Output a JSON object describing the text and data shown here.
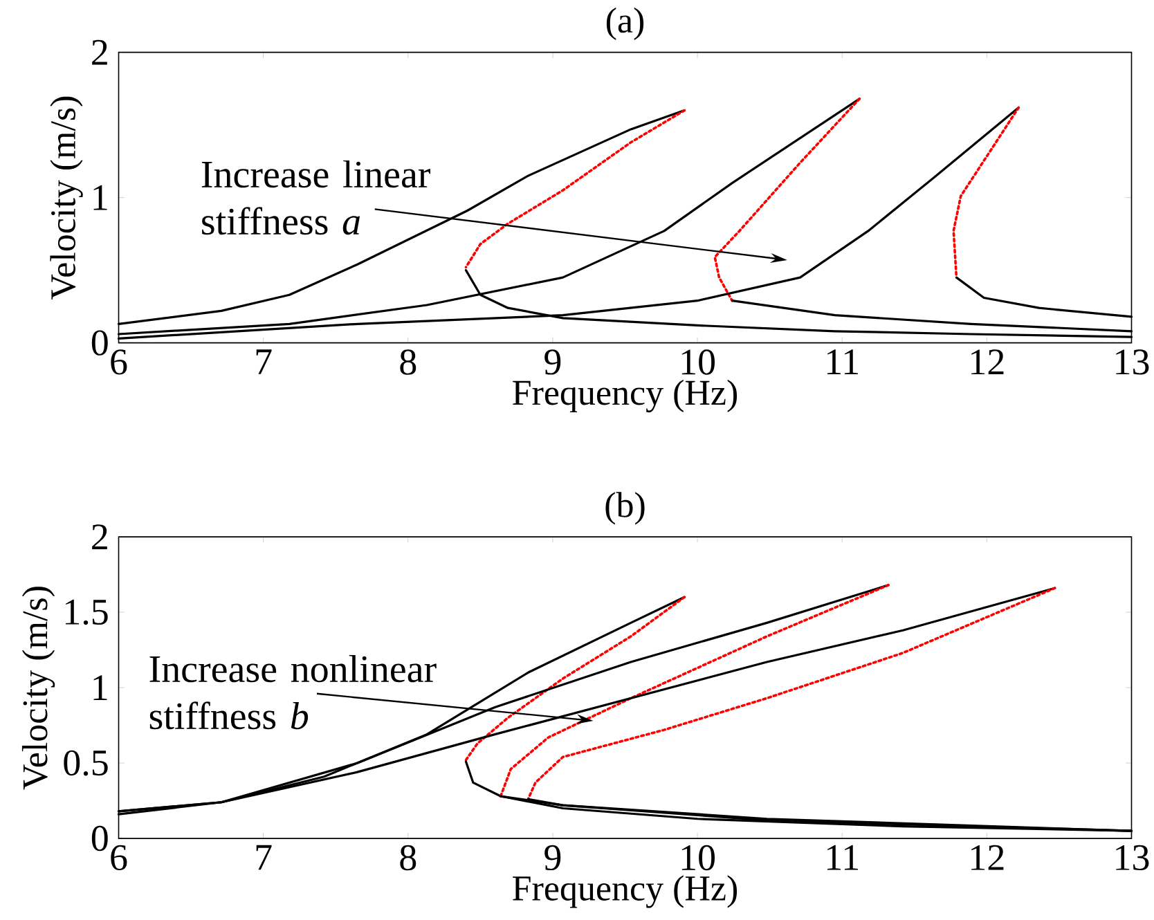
{
  "chart_data": [
    {
      "type": "line",
      "title": "(a)",
      "xlabel": "Frequency (Hz)",
      "ylabel": "Velocity (m/s)",
      "xlim": [
        6,
        13
      ],
      "ylim": [
        0,
        2
      ],
      "xticks": [
        6,
        7,
        8,
        9,
        10,
        11,
        12,
        13
      ],
      "yticks": [
        0,
        1,
        2
      ],
      "annotations": [
        "Increase linear stiffness *a*"
      ],
      "series": [
        {
          "color": "#000000",
          "line_style": "solid",
          "x": [
            6.0,
            6.71,
            7.18,
            7.65,
            8.41,
            8.83,
            9.54,
            9.91
          ],
          "values": [
            0.13,
            0.22,
            0.33,
            0.54,
            0.91,
            1.15,
            1.47,
            1.6
          ]
        },
        {
          "color": "#ff0000",
          "line_style": "dotted",
          "x": [
            9.91,
            9.54,
            9.07,
            8.69,
            8.5,
            8.4
          ],
          "values": [
            1.6,
            1.38,
            1.05,
            0.82,
            0.68,
            0.52
          ]
        },
        {
          "color": "#000000",
          "line_style": "solid",
          "x": [
            8.4,
            8.5,
            8.69,
            9.07,
            10.0,
            10.95,
            11.89,
            13.0
          ],
          "values": [
            0.5,
            0.33,
            0.24,
            0.17,
            0.12,
            0.08,
            0.06,
            0.04
          ]
        },
        {
          "color": "#000000",
          "line_style": "solid",
          "x": [
            6.0,
            7.18,
            8.13,
            9.07,
            9.77,
            10.24,
            11.12
          ],
          "values": [
            0.06,
            0.13,
            0.26,
            0.45,
            0.77,
            1.1,
            1.68
          ]
        },
        {
          "color": "#ff0000",
          "line_style": "dotted",
          "x": [
            11.12,
            10.71,
            10.29,
            10.12,
            10.15,
            10.24
          ],
          "values": [
            1.68,
            1.24,
            0.77,
            0.59,
            0.45,
            0.29
          ]
        },
        {
          "color": "#000000",
          "line_style": "solid",
          "x": [
            10.24,
            10.95,
            11.89,
            13.0
          ],
          "values": [
            0.29,
            0.19,
            0.13,
            0.08
          ]
        },
        {
          "color": "#000000",
          "line_style": "solid",
          "x": [
            6.0,
            7.65,
            9.07,
            10.0,
            10.71,
            11.18,
            11.65,
            12.22
          ],
          "values": [
            0.03,
            0.13,
            0.19,
            0.29,
            0.45,
            0.77,
            1.15,
            1.62
          ]
        },
        {
          "color": "#ff0000",
          "line_style": "dotted",
          "x": [
            12.22,
            12.03,
            11.82,
            11.77,
            11.79
          ],
          "values": [
            1.62,
            1.33,
            1.01,
            0.77,
            0.45
          ]
        },
        {
          "color": "#000000",
          "line_style": "solid",
          "x": [
            11.79,
            11.98,
            12.36,
            13.0
          ],
          "values": [
            0.45,
            0.31,
            0.24,
            0.18
          ]
        }
      ]
    },
    {
      "type": "line",
      "title": "(b)",
      "xlabel": "Frequency (Hz)",
      "ylabel": "Velocity (m/s)",
      "xlim": [
        6,
        13
      ],
      "ylim": [
        0,
        2
      ],
      "xticks": [
        6,
        7,
        8,
        9,
        10,
        11,
        12,
        13
      ],
      "yticks": [
        0,
        0.5,
        1,
        1.5,
        2
      ],
      "annotations": [
        {
          "text": "Increase nonlinear stiffness *b*",
          "x": 9.28,
          "y": 0.78
        }
      ],
      "series": [
        {
          "color": "#000000",
          "line_style": "solid",
          "x": [
            6.0,
            6.71,
            7.42,
            8.13,
            8.83,
            9.54,
            9.91
          ],
          "values": [
            0.18,
            0.24,
            0.41,
            0.69,
            1.1,
            1.43,
            1.6
          ]
        },
        {
          "color": "#ff0000",
          "line_style": "dotted",
          "x": [
            9.91,
            9.54,
            9.07,
            8.69,
            8.48,
            8.4
          ],
          "values": [
            1.6,
            1.34,
            1.06,
            0.8,
            0.63,
            0.52
          ]
        },
        {
          "color": "#000000",
          "line_style": "solid",
          "x": [
            8.4,
            8.45,
            8.64,
            9.07,
            10.0,
            11.42,
            13.0
          ],
          "values": [
            0.51,
            0.37,
            0.28,
            0.2,
            0.13,
            0.08,
            0.05
          ]
        },
        {
          "color": "#000000",
          "line_style": "solid",
          "x": [
            6.0,
            6.71,
            7.65,
            8.6,
            9.54,
            10.48,
            11.32
          ],
          "values": [
            0.18,
            0.24,
            0.5,
            0.87,
            1.17,
            1.43,
            1.68
          ]
        },
        {
          "color": "#ff0000",
          "line_style": "dotted",
          "x": [
            11.32,
            10.48,
            9.54,
            8.97,
            8.71,
            8.64
          ],
          "values": [
            1.68,
            1.34,
            0.93,
            0.67,
            0.46,
            0.28
          ]
        },
        {
          "color": "#000000",
          "line_style": "solid",
          "x": [
            8.64,
            9.07,
            10.48,
            13.0
          ],
          "values": [
            0.28,
            0.22,
            0.13,
            0.05
          ]
        },
        {
          "color": "#000000",
          "line_style": "solid",
          "x": [
            6.0,
            6.71,
            7.65,
            8.6,
            9.54,
            10.48,
            11.42,
            12.47
          ],
          "values": [
            0.16,
            0.24,
            0.44,
            0.69,
            0.93,
            1.17,
            1.38,
            1.66
          ]
        },
        {
          "color": "#ff0000",
          "line_style": "dotted",
          "x": [
            12.47,
            11.42,
            10.48,
            9.77,
            9.07,
            8.88,
            8.83
          ],
          "values": [
            1.66,
            1.23,
            0.93,
            0.72,
            0.54,
            0.37,
            0.26
          ]
        },
        {
          "color": "#000000",
          "line_style": "solid",
          "x": [
            8.83,
            9.07,
            10.48,
            13.0
          ],
          "values": [
            0.26,
            0.22,
            0.12,
            0.05
          ]
        }
      ]
    }
  ]
}
